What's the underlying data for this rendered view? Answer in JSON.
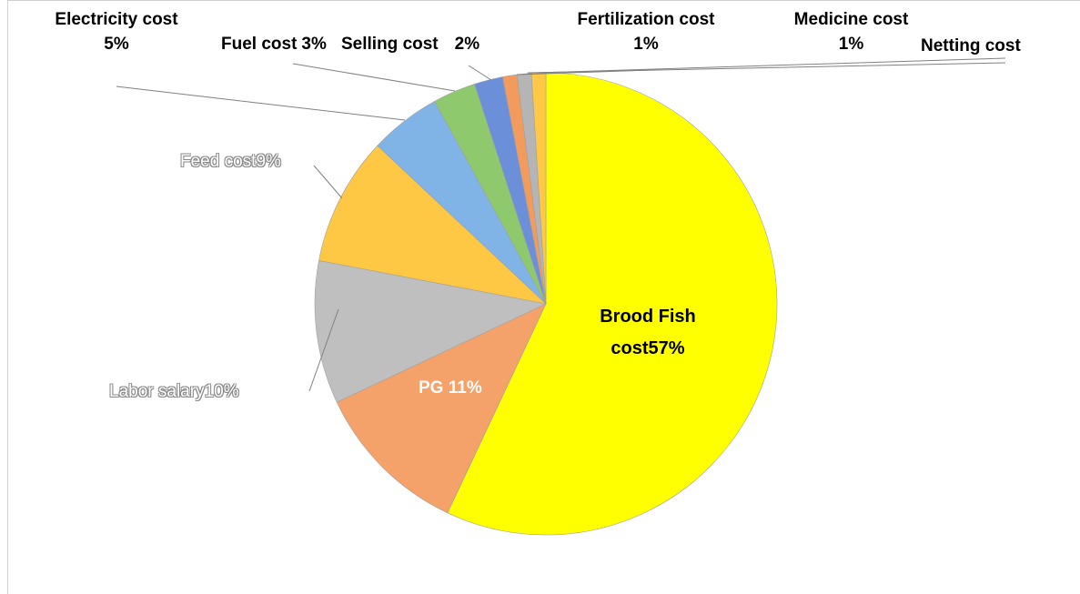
{
  "chart_data": {
    "type": "pie",
    "categories": [
      "Brood Fish cost",
      "PG",
      "Labor salary",
      "Feed cost",
      "Electricity cost",
      "Fuel cost",
      "Selling cost",
      "Fertilization cost",
      "Medicine cost",
      "Netting cost"
    ],
    "values": [
      57,
      11,
      10,
      9,
      5,
      3,
      2,
      1,
      1,
      1
    ],
    "value_labels": [
      "57%",
      "11%",
      "10%",
      "9%",
      "5%",
      "3%",
      "2%",
      "1%",
      "1%",
      null
    ],
    "colors": [
      "#ffff00",
      "#f4a26a",
      "#bfbfbf",
      "#ffc844",
      "#80b3e6",
      "#8fc96e",
      "#6b8fd9",
      "#f29b5c",
      "#b5b5b5",
      "#ffc845"
    ]
  }
}
